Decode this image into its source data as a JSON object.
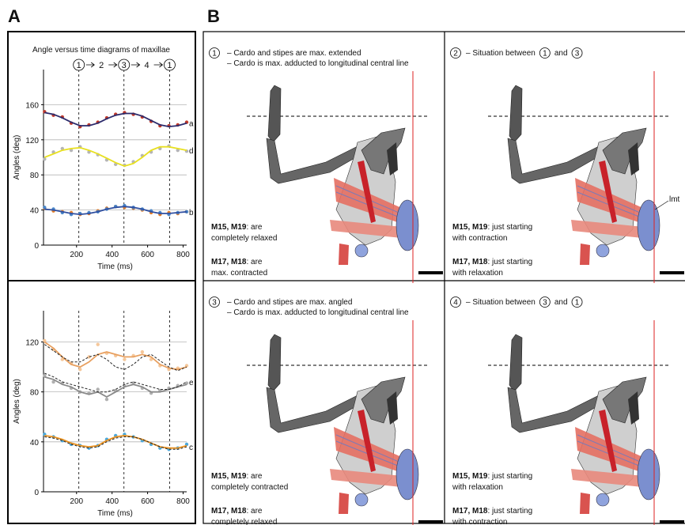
{
  "panel_labels": [
    "A",
    "B"
  ],
  "chart_data": [
    {
      "type": "line",
      "title": "Angle versus time diagrams of maxillae",
      "ylabel": "Angles (deg)",
      "xlabel": "Time (ms)",
      "xlim": [
        14,
        820
      ],
      "xticks": [
        200,
        400,
        600,
        800
      ],
      "ylim": [
        0,
        200
      ],
      "yticks": [
        0,
        40,
        80,
        120,
        160
      ],
      "grid": true,
      "phase_lines": [
        213,
        467,
        724
      ],
      "phase_labels": [
        "1",
        "2",
        "3",
        "4",
        "1"
      ],
      "x": [
        20,
        70,
        120,
        170,
        220,
        270,
        320,
        370,
        420,
        470,
        520,
        570,
        620,
        670,
        720,
        770,
        820
      ],
      "series": [
        {
          "color": "#c0392b",
          "style": "dots",
          "values": [
            152,
            148,
            146,
            139,
            135,
            137,
            140,
            145,
            149,
            151,
            149,
            146,
            141,
            136,
            136,
            137,
            140
          ]
        },
        {
          "name": "a",
          "color": "#2b2a6b",
          "style": "line",
          "values": [
            151,
            149,
            145,
            140,
            136,
            136,
            139,
            144,
            148,
            150,
            150,
            147,
            142,
            137,
            135,
            136,
            139
          ]
        },
        {
          "color": "#b5b5b5",
          "style": "dots",
          "values": [
            98,
            106,
            110,
            108,
            112,
            106,
            103,
            97,
            92,
            91,
            95,
            102,
            106,
            110,
            113,
            108,
            107
          ]
        },
        {
          "name": "d",
          "color": "#e8e020",
          "style": "line",
          "values": [
            100,
            104,
            108,
            110,
            111,
            108,
            104,
            99,
            94,
            90,
            93,
            100,
            108,
            112,
            112,
            110,
            108
          ]
        },
        {
          "color": "#e07b28",
          "style": "dots",
          "values": [
            42,
            39,
            38,
            37,
            35,
            36,
            39,
            42,
            44,
            43,
            42,
            40,
            37,
            35,
            37,
            36,
            38
          ]
        },
        {
          "color": "#4a86c8",
          "style": "dots",
          "values": [
            43,
            41,
            37,
            35,
            36,
            37,
            38,
            41,
            44,
            45,
            43,
            41,
            39,
            37,
            35,
            37,
            38
          ]
        },
        {
          "name": "b",
          "color": "#2f4fa0",
          "style": "line",
          "values": [
            41,
            40,
            38,
            36,
            35,
            36,
            38,
            41,
            43,
            44,
            43,
            41,
            38,
            36,
            36,
            37,
            38
          ]
        }
      ]
    },
    {
      "type": "line",
      "ylabel": "Angles (deg)",
      "xlabel": "Time (ms)",
      "xlim": [
        14,
        820
      ],
      "xticks": [
        200,
        400,
        600,
        800
      ],
      "ylim": [
        0,
        145
      ],
      "yticks": [
        0,
        40,
        80,
        120
      ],
      "grid": true,
      "phase_lines": [
        213,
        467,
        724
      ],
      "x": [
        20,
        70,
        120,
        170,
        220,
        270,
        320,
        370,
        420,
        470,
        520,
        570,
        620,
        670,
        720,
        770,
        820
      ],
      "series": [
        {
          "color": "#f5c79a",
          "style": "dots",
          "values": [
            121,
            114,
            106,
            103,
            98,
            108,
            118,
            111,
            109,
            106,
            109,
            112,
            106,
            101,
            98,
            99,
            101
          ]
        },
        {
          "color": "#e8a060",
          "style": "line",
          "values": [
            120,
            115,
            108,
            102,
            100,
            104,
            110,
            112,
            110,
            108,
            108,
            110,
            108,
            102,
            99,
            98,
            100
          ]
        },
        {
          "color": "#222222",
          "style": "dashed",
          "values": [
            118,
            113,
            108,
            104,
            104,
            108,
            110,
            106,
            100,
            98,
            102,
            108,
            110,
            105,
            100,
            97,
            100
          ]
        },
        {
          "color": "#b0b0b0",
          "style": "dots",
          "values": [
            93,
            88,
            87,
            83,
            80,
            79,
            82,
            74,
            81,
            85,
            87,
            83,
            79,
            81,
            83,
            85,
            87
          ]
        },
        {
          "color": "#8a8a8a",
          "style": "line",
          "values": [
            92,
            90,
            86,
            84,
            80,
            78,
            80,
            76,
            80,
            84,
            86,
            84,
            80,
            80,
            82,
            84,
            86
          ]
        },
        {
          "name": "e",
          "color": "#222222",
          "style": "dashed",
          "values": [
            95,
            92,
            88,
            86,
            84,
            82,
            80,
            80,
            82,
            86,
            88,
            86,
            84,
            82,
            82,
            84,
            88
          ]
        },
        {
          "color": "#4aa8dc",
          "style": "dots",
          "values": [
            46,
            44,
            41,
            38,
            37,
            35,
            37,
            42,
            45,
            46,
            44,
            41,
            38,
            35,
            34,
            35,
            38
          ]
        },
        {
          "color": "#e8901e",
          "style": "line",
          "values": [
            45,
            44,
            42,
            39,
            37,
            36,
            37,
            41,
            44,
            45,
            44,
            42,
            39,
            36,
            35,
            35,
            37
          ]
        },
        {
          "name": "c",
          "color": "#222222",
          "style": "dashed",
          "values": [
            44,
            43,
            41,
            38,
            36,
            35,
            36,
            40,
            43,
            44,
            44,
            42,
            39,
            36,
            34,
            34,
            36
          ]
        }
      ]
    }
  ],
  "diagram": {
    "panels": [
      {
        "number": "1",
        "header": [
          "– Cardo and stipes are max. extended",
          "– Cardo is max. adducted to longitudinal central line"
        ],
        "notes": [
          {
            "bold": "M15, M19",
            "rest": ": are",
            "line2": "completely relaxed"
          },
          {
            "bold": "M17, M18",
            "rest": ": are",
            "line2": "max. contracted"
          }
        ]
      },
      {
        "number": "2",
        "header": [
          "– Situation between",
          "and"
        ],
        "refs": [
          "1",
          "3"
        ],
        "label": "lmt",
        "notes": [
          {
            "bold": "M15, M19",
            "rest": ": just starting",
            "line2": "with contraction"
          },
          {
            "bold": "M17, M18",
            "rest": ": just starting",
            "line2": "with relaxation"
          }
        ]
      },
      {
        "number": "3",
        "header": [
          "– Cardo and stipes are max. angled",
          "– Cardo is max. adducted to longitudinal central line"
        ],
        "notes": [
          {
            "bold": "M15, M19",
            "rest": ": are",
            "line2": "completely contracted"
          },
          {
            "bold": "M17, M18",
            "rest": ": are",
            "line2": "completely relaxed"
          }
        ]
      },
      {
        "number": "4",
        "header": [
          "– Situation between",
          "and"
        ],
        "refs": [
          "3",
          "1"
        ],
        "notes": [
          {
            "bold": "M15, M19",
            "rest": ": just starting",
            "line2": "with relaxation"
          },
          {
            "bold": "M17, M18",
            "rest": ": just starting",
            "line2": "with contraction"
          }
        ]
      }
    ]
  }
}
